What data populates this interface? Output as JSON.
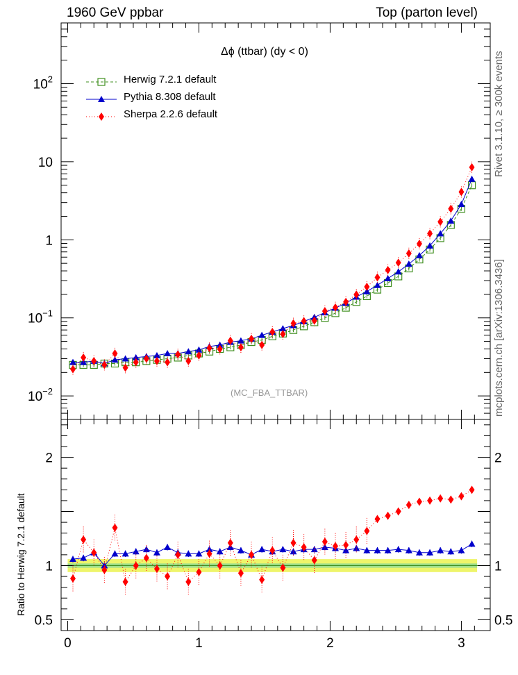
{
  "header": {
    "left": "1960 GeV ppbar",
    "right": "Top (parton level)"
  },
  "side_labels": {
    "rivet": "Rivet 3.1.10, ≥ 300k events",
    "site": "mcplots.cern.ch [arXiv:1306.3436]"
  },
  "chart_data": {
    "type": "line",
    "title": "Δϕ (ttbar) (dy < 0)",
    "watermark": "(MC_FBA_TTBAR)",
    "xlabel": "",
    "ylabel": "",
    "xlim": [
      -0.05,
      3.22
    ],
    "ylim": [
      0.005,
      600
    ],
    "yscale": "log",
    "x_ticks": [
      "0",
      "1",
      "2",
      "3"
    ],
    "y_ticks": [
      "10^-2",
      "10^-1",
      "1",
      "10",
      "10^2"
    ],
    "legend_position": "top-left",
    "x": [
      0.04,
      0.12,
      0.2,
      0.28,
      0.36,
      0.44,
      0.52,
      0.6,
      0.68,
      0.76,
      0.84,
      0.92,
      1.0,
      1.08,
      1.16,
      1.24,
      1.32,
      1.4,
      1.48,
      1.56,
      1.64,
      1.72,
      1.8,
      1.88,
      1.96,
      2.04,
      2.12,
      2.2,
      2.28,
      2.36,
      2.44,
      2.52,
      2.6,
      2.68,
      2.76,
      2.84,
      2.92,
      3.0,
      3.08
    ],
    "series": [
      {
        "name": "Herwig 7.2.1 default",
        "color": "#3f8f1f",
        "marker": "open-square",
        "line": "dashed",
        "values": [
          0.025,
          0.025,
          0.025,
          0.026,
          0.026,
          0.027,
          0.027,
          0.028,
          0.029,
          0.03,
          0.031,
          0.033,
          0.035,
          0.037,
          0.04,
          0.042,
          0.045,
          0.049,
          0.052,
          0.058,
          0.063,
          0.07,
          0.078,
          0.088,
          0.1,
          0.115,
          0.135,
          0.16,
          0.19,
          0.23,
          0.28,
          0.34,
          0.43,
          0.56,
          0.75,
          1.05,
          1.55,
          2.5,
          5.0
        ]
      },
      {
        "name": "Pythia 8.308 default",
        "color": "#0000cc",
        "marker": "filled-triangle",
        "line": "solid",
        "values": [
          0.027,
          0.027,
          0.028,
          0.026,
          0.029,
          0.03,
          0.031,
          0.032,
          0.033,
          0.035,
          0.035,
          0.037,
          0.039,
          0.043,
          0.045,
          0.049,
          0.051,
          0.054,
          0.06,
          0.066,
          0.073,
          0.08,
          0.09,
          0.102,
          0.117,
          0.134,
          0.154,
          0.186,
          0.218,
          0.262,
          0.32,
          0.39,
          0.49,
          0.63,
          0.84,
          1.2,
          1.75,
          2.85,
          6.0
        ]
      },
      {
        "name": "Sherpa 2.2.6 default",
        "color": "#ff0000",
        "marker": "filled-diamond",
        "line": "dotted",
        "values": [
          0.022,
          0.031,
          0.028,
          0.025,
          0.035,
          0.023,
          0.027,
          0.03,
          0.028,
          0.027,
          0.034,
          0.028,
          0.033,
          0.041,
          0.04,
          0.051,
          0.042,
          0.054,
          0.045,
          0.066,
          0.062,
          0.085,
          0.091,
          0.092,
          0.122,
          0.136,
          0.16,
          0.199,
          0.25,
          0.33,
          0.41,
          0.51,
          0.67,
          0.89,
          1.2,
          1.7,
          2.5,
          4.1,
          8.5
        ]
      }
    ],
    "ratio": {
      "ylabel": "Ratio to Herwig 7.2.1 default",
      "ylim": [
        0.4,
        2.35
      ],
      "y_ticks": [
        "0.5",
        "1",
        "2"
      ],
      "band_range": [
        0.94,
        1.06
      ],
      "pythia": [
        1.06,
        1.07,
        1.12,
        1.0,
        1.11,
        1.11,
        1.13,
        1.15,
        1.12,
        1.17,
        1.12,
        1.11,
        1.11,
        1.15,
        1.13,
        1.17,
        1.14,
        1.1,
        1.15,
        1.13,
        1.15,
        1.13,
        1.15,
        1.15,
        1.17,
        1.16,
        1.14,
        1.16,
        1.14,
        1.14,
        1.14,
        1.15,
        1.14,
        1.12,
        1.12,
        1.14,
        1.13,
        1.14,
        1.2
      ],
      "sherpa": [
        0.88,
        1.24,
        1.12,
        0.96,
        1.35,
        0.85,
        1.0,
        1.07,
        0.97,
        0.9,
        1.1,
        0.85,
        0.94,
        1.11,
        1.0,
        1.21,
        0.93,
        1.1,
        0.87,
        1.14,
        0.98,
        1.21,
        1.17,
        1.05,
        1.22,
        1.18,
        1.19,
        1.24,
        1.32,
        1.43,
        1.46,
        1.5,
        1.56,
        1.59,
        1.6,
        1.62,
        1.61,
        1.64,
        1.7
      ]
    }
  }
}
